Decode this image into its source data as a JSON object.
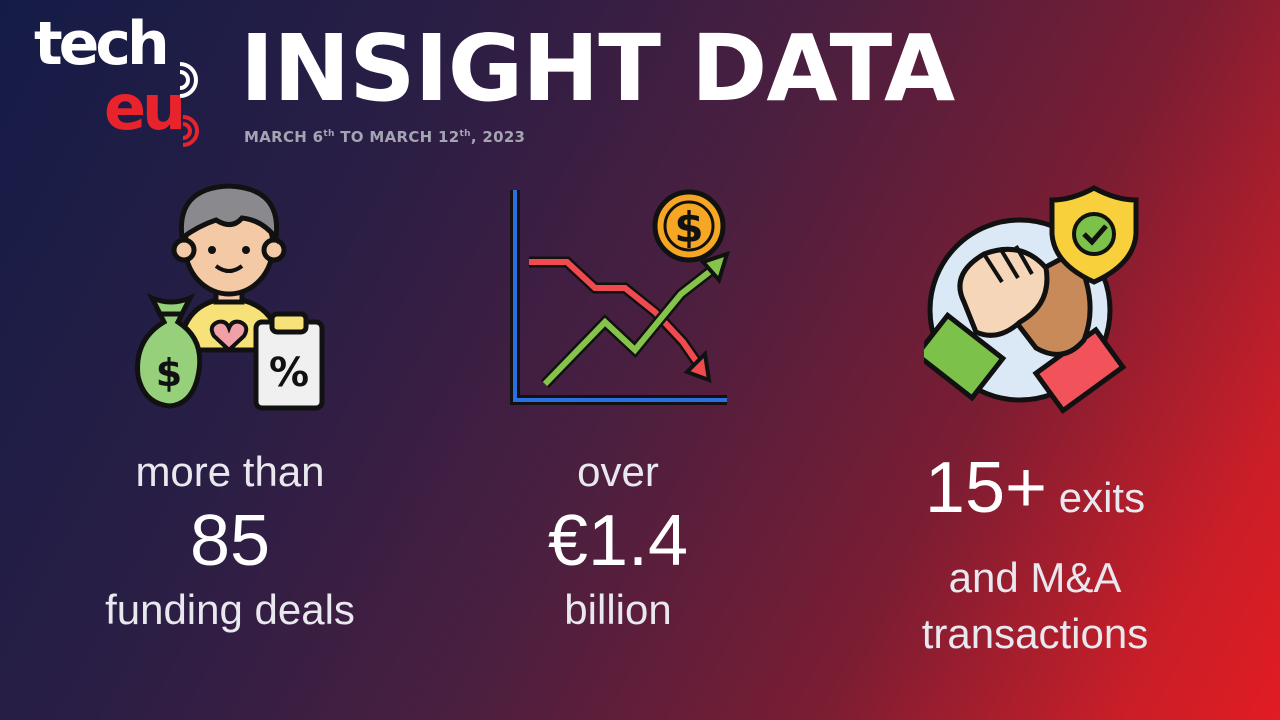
{
  "logo": {
    "tech": "tech",
    "eu": "eu"
  },
  "header": {
    "title": "INSIGHT DATA",
    "date_start_prefix": "MARCH 6",
    "date_start_sup": "th",
    "date_mid": " TO MARCH 12",
    "date_end_sup": "th",
    "date_end_suffix": ", 2023"
  },
  "stats": [
    {
      "top": "more than",
      "value": "85",
      "bottom": "funding deals",
      "icon": "investor-icon"
    },
    {
      "top": "over",
      "value": "€1.4",
      "bottom": "billion",
      "icon": "market-chart-icon"
    },
    {
      "value": "15+",
      "value_suffix": " exits",
      "line2": "and M&A",
      "line3": "transactions",
      "icon": "handshake-shield-icon"
    }
  ],
  "colors": {
    "brand_red": "#e8232c",
    "text": "#e8e8ee",
    "subtitle": "#a4a4b3"
  }
}
